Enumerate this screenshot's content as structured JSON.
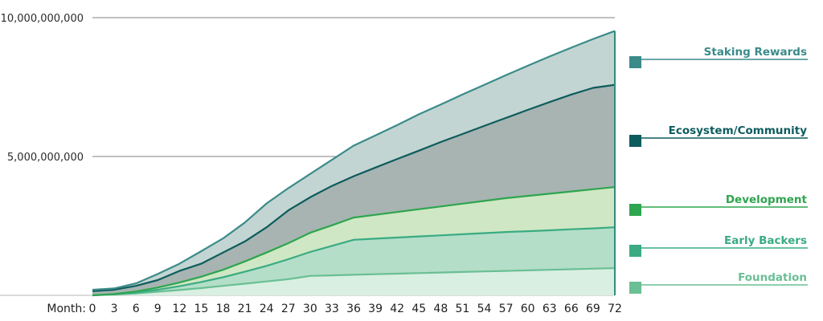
{
  "chart_data": {
    "type": "area",
    "stacked": true,
    "x_prefix": "Month:",
    "x": [
      0,
      3,
      6,
      9,
      12,
      15,
      18,
      21,
      24,
      27,
      30,
      33,
      36,
      39,
      42,
      45,
      48,
      51,
      54,
      57,
      60,
      63,
      66,
      69,
      72
    ],
    "ylim": [
      0,
      10000000000
    ],
    "yticks": [
      5000000000,
      10000000000
    ],
    "ytick_labels": [
      "5,000,000,000",
      "10,000,000,000"
    ],
    "grid": true,
    "legend_position": "right",
    "series": [
      {
        "name": "Foundation",
        "color": "#6abf94",
        "fill": "#d9efe2",
        "cumulative": [
          0,
          30000000,
          70000000,
          130000000,
          190000000,
          260000000,
          340000000,
          420000000,
          500000000,
          580000000,
          700000000,
          720000000,
          740000000,
          760000000,
          780000000,
          800000000,
          820000000,
          840000000,
          860000000,
          880000000,
          900000000,
          920000000,
          940000000,
          960000000,
          980000000
        ]
      },
      {
        "name": "Early Backers",
        "color": "#3aab82",
        "fill": "#b4dec8",
        "cumulative": [
          0,
          40000000,
          100000000,
          200000000,
          330000000,
          480000000,
          650000000,
          850000000,
          1060000000,
          1300000000,
          1560000000,
          1780000000,
          2000000000,
          2040000000,
          2080000000,
          2120000000,
          2160000000,
          2200000000,
          2240000000,
          2280000000,
          2310000000,
          2340000000,
          2380000000,
          2410000000,
          2450000000
        ]
      },
      {
        "name": "Development",
        "color": "#2ea54f",
        "fill": "#cfe7c4",
        "cumulative": [
          0,
          50000000,
          140000000,
          280000000,
          460000000,
          670000000,
          920000000,
          1220000000,
          1540000000,
          1880000000,
          2250000000,
          2520000000,
          2800000000,
          2900000000,
          3000000000,
          3100000000,
          3200000000,
          3300000000,
          3400000000,
          3500000000,
          3580000000,
          3660000000,
          3740000000,
          3820000000,
          3900000000
        ]
      },
      {
        "name": "Ecosystem/Community",
        "color": "#0d5c5d",
        "fill": "#a7b4b2",
        "cumulative": [
          150000000,
          200000000,
          340000000,
          550000000,
          880000000,
          1140000000,
          1540000000,
          1940000000,
          2450000000,
          3060000000,
          3530000000,
          3940000000,
          4290000000,
          4600000000,
          4910000000,
          5210000000,
          5520000000,
          5810000000,
          6100000000,
          6390000000,
          6680000000,
          6960000000,
          7230000000,
          7470000000,
          7580000000
        ]
      },
      {
        "name": "Staking Rewards",
        "color": "#3a8b8a",
        "fill": "#c3d5d2",
        "cumulative": [
          200000000,
          250000000,
          430000000,
          770000000,
          1140000000,
          1590000000,
          2050000000,
          2620000000,
          3310000000,
          3860000000,
          4370000000,
          4880000000,
          5390000000,
          5760000000,
          6130000000,
          6520000000,
          6870000000,
          7230000000,
          7580000000,
          7930000000,
          8270000000,
          8600000000,
          8920000000,
          9230000000,
          9520000000
        ]
      }
    ]
  }
}
